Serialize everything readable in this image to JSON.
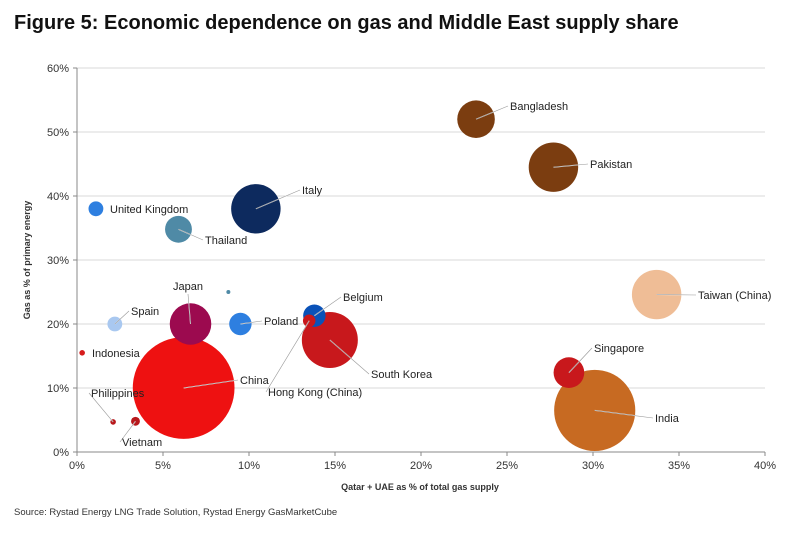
{
  "title": "Figure 5: Economic dependence on gas and Middle East supply share",
  "source": "Source: Rystad Energy LNG Trade Solution, Rystad Energy GasMarketCube",
  "chart_data": {
    "type": "bubble",
    "xlabel": "Qatar + UAE as % of total gas supply",
    "ylabel": "Gas as % of primary energy",
    "xlim": [
      0,
      40
    ],
    "ylim": [
      0,
      60
    ],
    "xticks": [
      "0%",
      "5%",
      "10%",
      "15%",
      "20%",
      "25%",
      "30%",
      "35%",
      "40%"
    ],
    "yticks": [
      "0%",
      "10%",
      "20%",
      "30%",
      "40%",
      "50%",
      "60%"
    ],
    "grid": "horizontal",
    "points": [
      {
        "label": "Bangladesh",
        "x": 23.2,
        "y": 52.0,
        "size": 0.45,
        "color": "#7b3d10"
      },
      {
        "label": "Pakistan",
        "x": 27.7,
        "y": 44.5,
        "size": 0.78,
        "color": "#7b3d10"
      },
      {
        "label": "Italy",
        "x": 10.4,
        "y": 38.0,
        "size": 0.78,
        "color": "#0d2a5e"
      },
      {
        "label": "United Kingdom",
        "x": 1.1,
        "y": 38.0,
        "size": 0.07,
        "color": "#2e7fe0"
      },
      {
        "label": "Thailand",
        "x": 5.9,
        "y": 34.8,
        "size": 0.23,
        "color": "#4f8aa6"
      },
      {
        "label": "Taiwan (China)",
        "x": 33.7,
        "y": 24.6,
        "size": 0.78,
        "color": "#efbd96"
      },
      {
        "label": "",
        "x": 8.8,
        "y": 25.0,
        "size": 0.004,
        "color": "#4f8aa6"
      },
      {
        "label": "Japan",
        "x": 6.6,
        "y": 20.0,
        "size": 0.55,
        "color": "#9c0a4f"
      },
      {
        "label": "Spain",
        "x": 2.2,
        "y": 20.0,
        "size": 0.07,
        "color": "#a9c8f0"
      },
      {
        "label": "Poland",
        "x": 9.5,
        "y": 20.0,
        "size": 0.16,
        "color": "#2e7fe0"
      },
      {
        "label": "Belgium",
        "x": 13.8,
        "y": 21.3,
        "size": 0.16,
        "color": "#0a52b8"
      },
      {
        "label": "Hong Kong (China)",
        "x": 13.5,
        "y": 20.5,
        "size": 0.05,
        "color": "#c8181c"
      },
      {
        "label": "South Korea",
        "x": 14.7,
        "y": 17.5,
        "size": 1.0,
        "color": "#c8181c"
      },
      {
        "label": "Indonesia",
        "x": 0.3,
        "y": 15.5,
        "size": 0.01,
        "color": "#d61c1c"
      },
      {
        "label": "Singapore",
        "x": 28.6,
        "y": 12.4,
        "size": 0.3,
        "color": "#c8181c"
      },
      {
        "label": "China",
        "x": 6.2,
        "y": 10.0,
        "size": 3.3,
        "color": "#ee1111"
      },
      {
        "label": "India",
        "x": 30.1,
        "y": 6.5,
        "size": 2.1,
        "color": "#c76a22"
      },
      {
        "label": "Philippines",
        "x": 2.1,
        "y": 4.7,
        "size": 0.01,
        "color": "#b8181c"
      },
      {
        "label": "Vietnam",
        "x": 3.4,
        "y": 4.8,
        "size": 0.025,
        "color": "#b8181c"
      }
    ]
  }
}
